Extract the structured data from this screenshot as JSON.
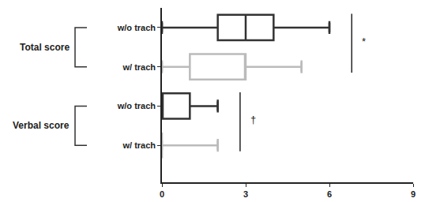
{
  "chart_data": {
    "type": "box",
    "orientation": "horizontal",
    "categories": [
      "w/o trach",
      "w/ trach",
      "w/o trach",
      "w/ trach"
    ],
    "groups": [
      {
        "name": "Total score",
        "annotation": "*",
        "boxes": [
          {
            "name": "w/o trach",
            "color": "#333333",
            "min": 0,
            "q1": 2,
            "median": 3,
            "q3": 4,
            "max": 6
          },
          {
            "name": "w/ trach",
            "color": "#bbbbbb",
            "min": 0,
            "q1": 1,
            "median": 3,
            "q3": 3,
            "max": 5
          }
        ]
      },
      {
        "name": "Verbal score",
        "annotation": "†",
        "boxes": [
          {
            "name": "w/o trach",
            "color": "#333333",
            "min": 0,
            "q1": 0,
            "median": 0,
            "q3": 1,
            "max": 2
          },
          {
            "name": "w/ trach",
            "color": "#bbbbbb",
            "min": 0,
            "q1": 0,
            "median": 0,
            "q3": 0,
            "max": 2
          }
        ]
      }
    ],
    "xlim": [
      0,
      9
    ],
    "xticks": [
      0,
      3,
      6,
      9
    ],
    "grid": false
  }
}
